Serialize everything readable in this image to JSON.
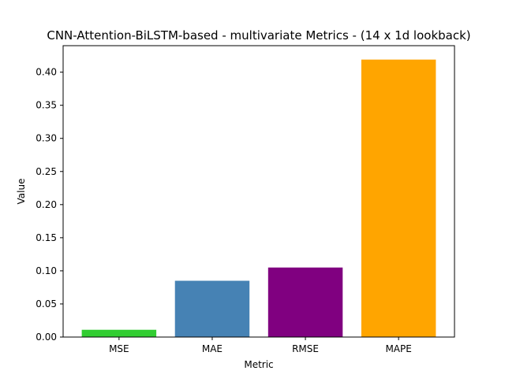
{
  "chart_data": {
    "type": "bar",
    "title": "CNN-Attention-BiLSTM-based - multivariate Metrics - (14 x 1d lookback)",
    "xlabel": "Metric",
    "ylabel": "Value",
    "categories": [
      "MSE",
      "MAE",
      "RMSE",
      "MAPE"
    ],
    "values": [
      0.011,
      0.085,
      0.105,
      0.419
    ],
    "colors": [
      "#32cd32",
      "#4682b4",
      "#800080",
      "#ffa500"
    ],
    "ylim": [
      0,
      0.44
    ],
    "yticks": [
      "0.00",
      "0.05",
      "0.10",
      "0.15",
      "0.20",
      "0.25",
      "0.30",
      "0.35",
      "0.40"
    ],
    "grid": false,
    "legend": "none"
  }
}
